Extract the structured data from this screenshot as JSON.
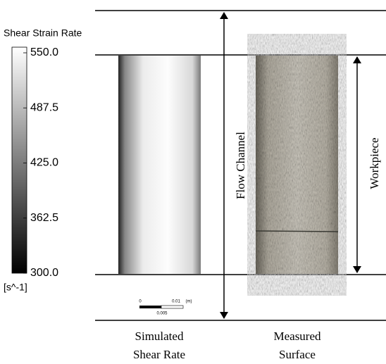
{
  "colorbar": {
    "title": "Shear Strain Rate",
    "unit": "[s^-1]",
    "lim": [
      300,
      550
    ],
    "ticks": [
      {
        "value": 550,
        "label": "550.0"
      },
      {
        "value": 487.5,
        "label": "487.5"
      },
      {
        "value": 425,
        "label": "425.0"
      },
      {
        "value": 362.5,
        "label": "362.5"
      },
      {
        "value": 300,
        "label": "300.0"
      }
    ]
  },
  "scale_bar": {
    "start": "0",
    "end": "0.01",
    "unit": "(m)",
    "mid": "0.005"
  },
  "labels": {
    "flow_channel": "Flow Channel",
    "workpiece": "Workpiece"
  },
  "captions": {
    "simulated": [
      "Simulated",
      "Shear Rate"
    ],
    "measured": [
      "Measured",
      "Surface"
    ]
  }
}
